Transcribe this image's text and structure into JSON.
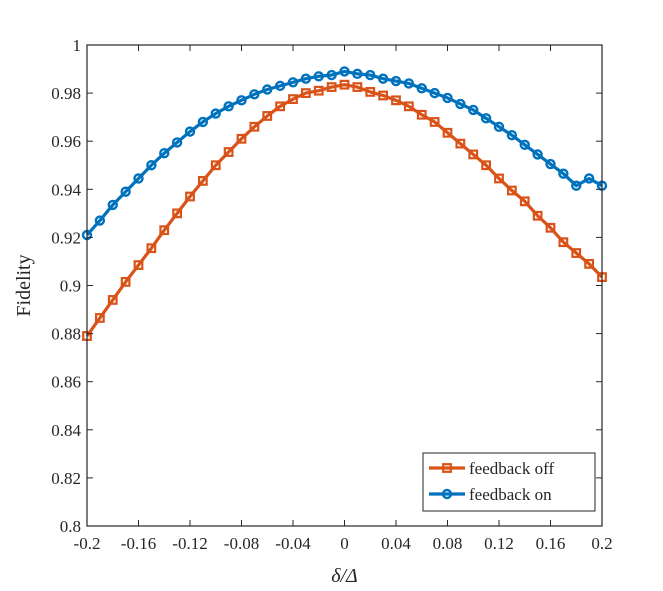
{
  "chart_data": {
    "type": "line",
    "title": "",
    "xlabel": "δ/Δ",
    "ylabel": "Fidelity",
    "xlim": [
      -0.2,
      0.2
    ],
    "ylim": [
      0.8,
      1.0
    ],
    "xticks": [
      -0.2,
      -0.16,
      -0.12,
      -0.08,
      -0.04,
      0,
      0.04,
      0.08,
      0.12,
      0.16,
      0.2
    ],
    "xtick_labels": [
      "-0.2",
      "-0.16",
      "-0.12",
      "-0.08",
      "-0.04",
      "0",
      "0.04",
      "0.08",
      "0.12",
      "0.16",
      "0.2"
    ],
    "yticks": [
      0.8,
      0.82,
      0.84,
      0.86,
      0.88,
      0.9,
      0.92,
      0.94,
      0.96,
      0.98,
      1.0
    ],
    "ytick_labels": [
      "0.8",
      "0.82",
      "0.84",
      "0.86",
      "0.88",
      "0.9",
      "0.92",
      "0.94",
      "0.96",
      "0.98",
      "1"
    ],
    "legend_position": "bottom-right",
    "x": [
      -0.2,
      -0.19,
      -0.18,
      -0.17,
      -0.16,
      -0.15,
      -0.14,
      -0.13,
      -0.12,
      -0.11,
      -0.1,
      -0.09,
      -0.08,
      -0.07,
      -0.06,
      -0.05,
      -0.04,
      -0.03,
      -0.02,
      -0.01,
      0,
      0.01,
      0.02,
      0.03,
      0.04,
      0.05,
      0.06,
      0.07,
      0.08,
      0.09,
      0.1,
      0.11,
      0.12,
      0.13,
      0.14,
      0.15,
      0.16,
      0.17,
      0.18,
      0.19,
      0.2
    ],
    "series": [
      {
        "name": "feedback off",
        "color": "#D95319",
        "marker": "square",
        "values": [
          0.879,
          0.8865,
          0.894,
          0.9015,
          0.9085,
          0.9155,
          0.923,
          0.93,
          0.937,
          0.9435,
          0.95,
          0.9555,
          0.961,
          0.966,
          0.9705,
          0.9745,
          0.9775,
          0.98,
          0.981,
          0.9825,
          0.9835,
          0.9825,
          0.9805,
          0.979,
          0.977,
          0.9745,
          0.971,
          0.968,
          0.9635,
          0.959,
          0.9545,
          0.95,
          0.9445,
          0.9395,
          0.935,
          0.929,
          0.924,
          0.918,
          0.9135,
          0.909,
          0.9035
        ]
      },
      {
        "name": "feedback on",
        "color": "#0072BD",
        "marker": "circle",
        "values": [
          0.921,
          0.927,
          0.9335,
          0.939,
          0.9445,
          0.95,
          0.955,
          0.9595,
          0.964,
          0.968,
          0.9715,
          0.9745,
          0.977,
          0.9795,
          0.9815,
          0.983,
          0.9845,
          0.986,
          0.987,
          0.9875,
          0.989,
          0.988,
          0.9875,
          0.986,
          0.985,
          0.984,
          0.982,
          0.98,
          0.978,
          0.9755,
          0.973,
          0.9695,
          0.966,
          0.9625,
          0.9585,
          0.9545,
          0.9505,
          0.9465,
          0.9415,
          0.9445,
          0.9415
        ]
      }
    ]
  }
}
